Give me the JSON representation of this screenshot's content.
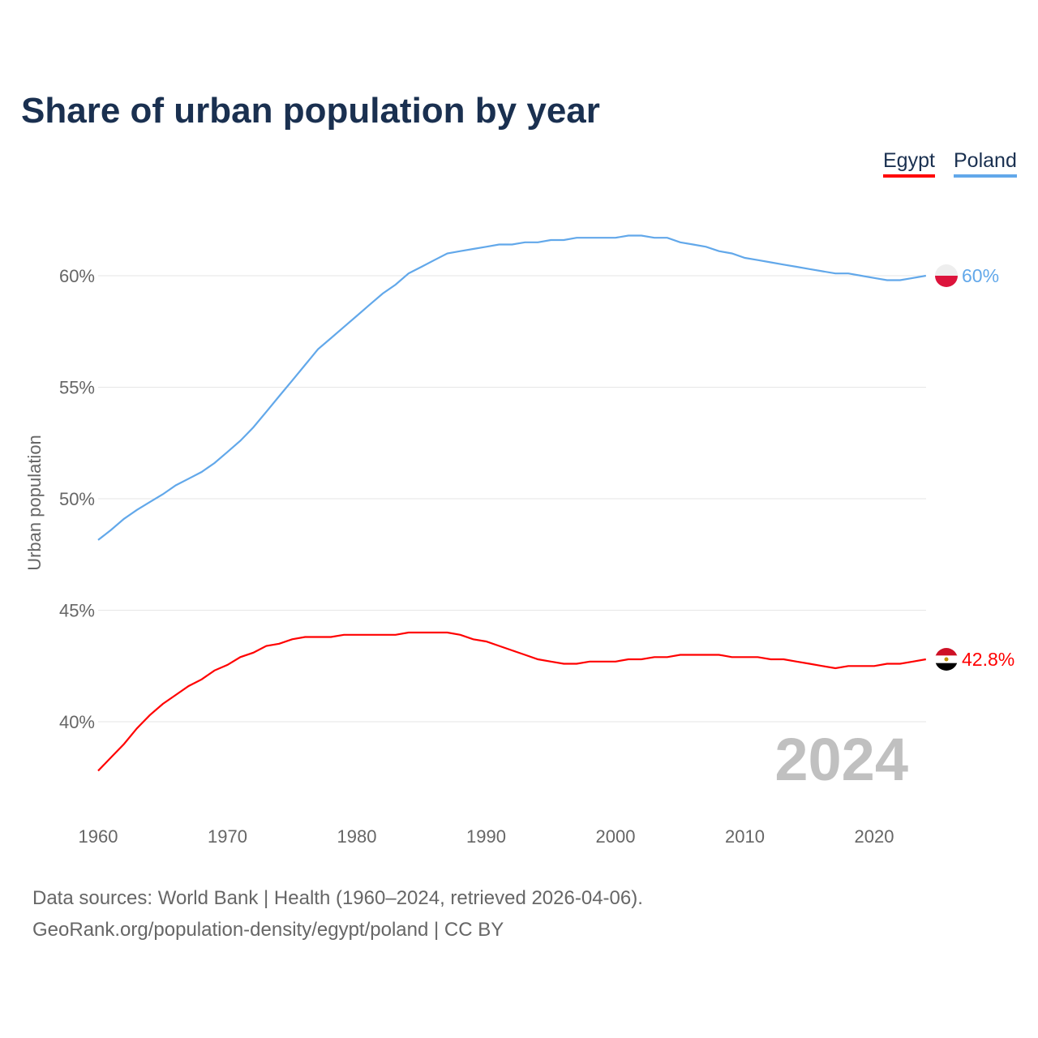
{
  "title": "Share of urban population by year",
  "legend": [
    {
      "label": "Egypt",
      "color": "#ff0000"
    },
    {
      "label": "Poland",
      "color": "#62a8ea"
    }
  ],
  "source_line1": "Data sources: World Bank | Health (1960–2024, retrieved 2026-04-06).",
  "source_line2": "GeoRank.org/population-density/egypt/poland | CC BY",
  "chart_data": {
    "type": "line",
    "title": "Share of urban population by year",
    "xlabel": "",
    "ylabel": "Urban population",
    "xlim": [
      1960,
      2024
    ],
    "ylim": [
      36,
      63
    ],
    "xticks": [
      1960,
      1970,
      1980,
      1990,
      2000,
      2010,
      2020
    ],
    "xtick_labels": [
      "1960",
      "1970",
      "1980",
      "1990",
      "2000",
      "2010",
      "2020"
    ],
    "yticks": [
      40,
      45,
      50,
      55,
      60
    ],
    "ytick_labels": [
      "40%",
      "45%",
      "50%",
      "55%",
      "60%"
    ],
    "year_watermark": "2024",
    "grid": true,
    "legend_position": "top-right",
    "series": [
      {
        "name": "Egypt",
        "color": "#ff0000",
        "end_label": "42.8%",
        "values": [
          37.8,
          38.4,
          39.0,
          39.7,
          40.3,
          40.8,
          41.2,
          41.6,
          41.9,
          42.3,
          42.55,
          42.9,
          43.1,
          43.4,
          43.5,
          43.7,
          43.8,
          43.8,
          43.8,
          43.9,
          43.9,
          43.9,
          43.9,
          43.9,
          44.0,
          44.0,
          44.0,
          44.0,
          43.9,
          43.7,
          43.6,
          43.4,
          43.2,
          43.0,
          42.8,
          42.7,
          42.6,
          42.6,
          42.7,
          42.7,
          42.7,
          42.8,
          42.8,
          42.9,
          42.9,
          43.0,
          43.0,
          43.0,
          43.0,
          42.9,
          42.9,
          42.9,
          42.8,
          42.8,
          42.7,
          42.6,
          42.5,
          42.4,
          42.5,
          42.5,
          42.5,
          42.6,
          42.6,
          42.7,
          42.8
        ]
      },
      {
        "name": "Poland",
        "color": "#62a8ea",
        "end_label": "60%",
        "values": [
          48.15,
          48.6,
          49.1,
          49.5,
          49.85,
          50.2,
          50.6,
          50.9,
          51.2,
          51.6,
          52.1,
          52.6,
          53.2,
          53.9,
          54.6,
          55.3,
          56.0,
          56.7,
          57.2,
          57.7,
          58.2,
          58.7,
          59.2,
          59.6,
          60.1,
          60.4,
          60.7,
          61.0,
          61.1,
          61.2,
          61.3,
          61.4,
          61.4,
          61.5,
          61.5,
          61.6,
          61.6,
          61.7,
          61.7,
          61.7,
          61.7,
          61.8,
          61.8,
          61.7,
          61.7,
          61.5,
          61.4,
          61.3,
          61.1,
          61.0,
          60.8,
          60.7,
          60.6,
          60.5,
          60.4,
          60.3,
          60.2,
          60.1,
          60.1,
          60.0,
          59.9,
          59.8,
          59.8,
          59.9,
          60.0
        ]
      }
    ]
  }
}
